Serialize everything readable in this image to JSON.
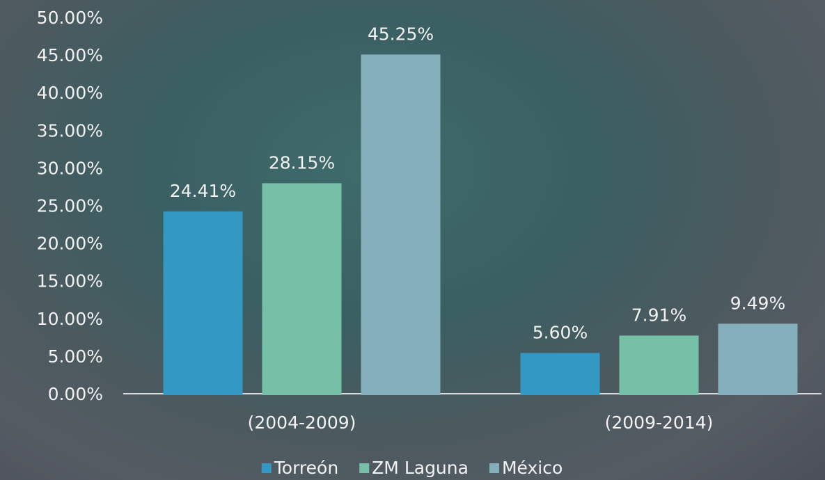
{
  "chart_data": {
    "type": "bar",
    "categories": [
      "(2004-2009)",
      "(2009-2014)"
    ],
    "series": [
      {
        "name": "Torreón",
        "color": "#3399c4",
        "values": [
          24.41,
          5.6
        ],
        "value_labels": [
          "24.41%",
          "5.60%"
        ]
      },
      {
        "name": "ZM Laguna",
        "color": "#76c0a8",
        "values": [
          28.15,
          7.91
        ],
        "value_labels": [
          "28.15%",
          "7.91%"
        ]
      },
      {
        "name": "México",
        "color": "#85afba",
        "values": [
          45.25,
          9.49
        ],
        "value_labels": [
          "45.25%",
          "9.49%"
        ]
      }
    ],
    "ylim": [
      0,
      50
    ],
    "yticks": [
      {
        "value": 0,
        "label": "0.00%"
      },
      {
        "value": 5,
        "label": "5.00%"
      },
      {
        "value": 10,
        "label": "10.00%"
      },
      {
        "value": 15,
        "label": "15.00%"
      },
      {
        "value": 20,
        "label": "20.00%"
      },
      {
        "value": 25,
        "label": "25.00%"
      },
      {
        "value": 30,
        "label": "30.00%"
      },
      {
        "value": 35,
        "label": "35.00%"
      },
      {
        "value": 40,
        "label": "40.00%"
      },
      {
        "value": 45,
        "label": "45.00%"
      },
      {
        "value": 50,
        "label": "50.00%"
      }
    ],
    "legend": "bottom"
  }
}
